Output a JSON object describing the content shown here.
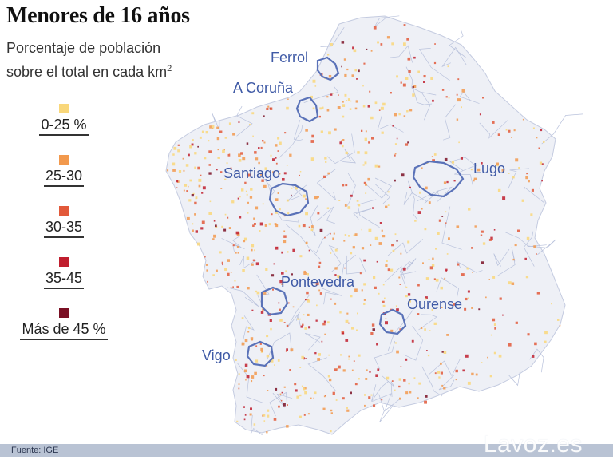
{
  "title": "Menores de 16 años",
  "subtitle": {
    "line1": "Porcentaje de población",
    "line2_prefix": "sobre el total en cada km",
    "line2_sup": "2"
  },
  "legend": [
    {
      "label": "0-25 %",
      "color": "#f9d77a"
    },
    {
      "label": "25-30",
      "color": "#f2994d"
    },
    {
      "label": "30-35",
      "color": "#e2593a"
    },
    {
      "label": "35-45",
      "color": "#c01e2e"
    },
    {
      "label": "Más de 45 %",
      "color": "#7a1024"
    }
  ],
  "cities": [
    {
      "name": "Ferrol"
    },
    {
      "name": "A Coruña"
    },
    {
      "name": "Santiago"
    },
    {
      "name": "Lugo"
    },
    {
      "name": "Pontevedra"
    },
    {
      "name": "Ourense"
    },
    {
      "name": "Vigo"
    }
  ],
  "colors": {
    "city_outline": "#5a72b8",
    "municipal_borders": "#b9c2dc",
    "land": "#eef0f6"
  },
  "source": "Fuente: IGE",
  "brand": "Lavoz.es"
}
